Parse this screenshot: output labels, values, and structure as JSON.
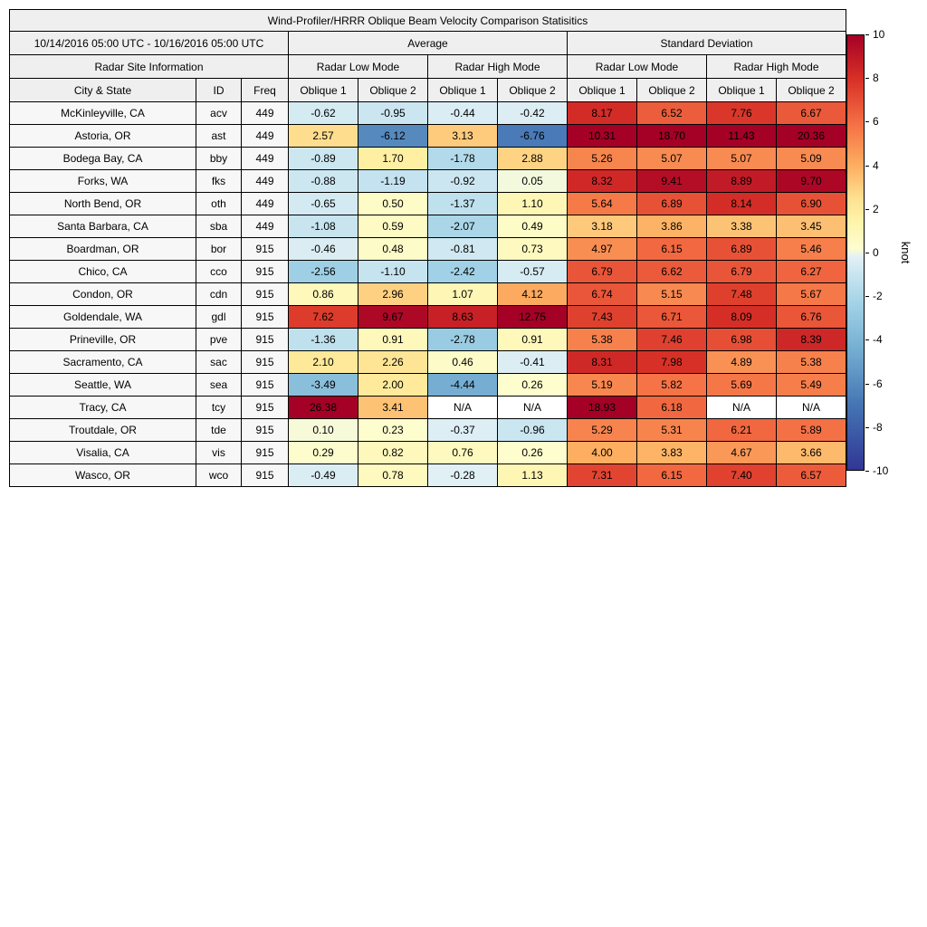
{
  "header": {
    "date_range": "10/14/2016 05:00 UTC - 10/16/2016 05:00 UTC",
    "average": "Average",
    "standard_deviation": "Standard Deviation",
    "radar_site_information": "Radar Site Information",
    "radar_low_mode": "Radar Low Mode",
    "radar_high_mode": "Radar High Mode",
    "city_state": "City & State",
    "id": "ID",
    "freq": "Freq",
    "oblique1": "Oblique 1",
    "oblique2": "Oblique 2"
  },
  "colorbar": {
    "unit_label": "knot",
    "min": -10,
    "max": 10,
    "ticks": [
      10,
      8,
      6,
      4,
      2,
      0,
      -2,
      -4,
      -6,
      -8,
      -10
    ],
    "anchors": [
      {
        "value": -10,
        "color": "#313695"
      },
      {
        "value": -7,
        "color": "#4575b4"
      },
      {
        "value": -4.5,
        "color": "#74add1"
      },
      {
        "value": -2.5,
        "color": "#9fd0e5"
      },
      {
        "value": -1,
        "color": "#c9e5f0"
      },
      {
        "value": -0.2,
        "color": "#e3f1f5"
      },
      {
        "value": 0.2,
        "color": "#fdfdcf"
      },
      {
        "value": 1.5,
        "color": "#fff3a8"
      },
      {
        "value": 2.5,
        "color": "#fee090"
      },
      {
        "value": 4,
        "color": "#fdae61"
      },
      {
        "value": 6,
        "color": "#f46d43"
      },
      {
        "value": 8,
        "color": "#d73027"
      },
      {
        "value": 10,
        "color": "#a50026"
      }
    ]
  },
  "chart_data": {
    "type": "heatmap",
    "title": "Wind-Profiler/HRRR Oblique Beam Velocity Comparison Statisitics",
    "date_range": "10/14/2016 05:00 UTC - 10/16/2016 05:00 UTC",
    "unit": "knot",
    "color_range": [
      -10,
      10
    ],
    "column_groups": [
      {
        "group": "Average",
        "subgroups": [
          "Radar Low Mode",
          "Radar High Mode"
        ]
      },
      {
        "group": "Standard Deviation",
        "subgroups": [
          "Radar Low Mode",
          "Radar High Mode"
        ]
      }
    ],
    "value_column_labels": [
      "Average / Radar Low Mode / Oblique 1",
      "Average / Radar Low Mode / Oblique 2",
      "Average / Radar High Mode / Oblique 1",
      "Average / Radar High Mode / Oblique 2",
      "Standard Deviation / Radar Low Mode / Oblique 1",
      "Standard Deviation / Radar Low Mode / Oblique 2",
      "Standard Deviation / Radar High Mode / Oblique 1",
      "Standard Deviation / Radar High Mode / Oblique 2"
    ],
    "rows": [
      {
        "city_state": "McKinleyville, CA",
        "id": "acv",
        "freq": "449",
        "values": [
          "-0.62",
          "-0.95",
          "-0.44",
          "-0.42",
          "8.17",
          "6.52",
          "7.76",
          "6.67"
        ]
      },
      {
        "city_state": "Astoria, OR",
        "id": "ast",
        "freq": "449",
        "values": [
          "2.57",
          "-6.12",
          "3.13",
          "-6.76",
          "10.31",
          "18.70",
          "11.43",
          "20.36"
        ]
      },
      {
        "city_state": "Bodega Bay, CA",
        "id": "bby",
        "freq": "449",
        "values": [
          "-0.89",
          "1.70",
          "-1.78",
          "2.88",
          "5.26",
          "5.07",
          "5.07",
          "5.09"
        ]
      },
      {
        "city_state": "Forks, WA",
        "id": "fks",
        "freq": "449",
        "values": [
          "-0.88",
          "-1.19",
          "-0.92",
          "0.05",
          "8.32",
          "9.41",
          "8.89",
          "9.70"
        ]
      },
      {
        "city_state": "North Bend, OR",
        "id": "oth",
        "freq": "449",
        "values": [
          "-0.65",
          "0.50",
          "-1.37",
          "1.10",
          "5.64",
          "6.89",
          "8.14",
          "6.90"
        ]
      },
      {
        "city_state": "Santa Barbara, CA",
        "id": "sba",
        "freq": "449",
        "values": [
          "-1.08",
          "0.59",
          "-2.07",
          "0.49",
          "3.18",
          "3.86",
          "3.38",
          "3.45"
        ]
      },
      {
        "city_state": "Boardman, OR",
        "id": "bor",
        "freq": "915",
        "values": [
          "-0.46",
          "0.48",
          "-0.81",
          "0.73",
          "4.97",
          "6.15",
          "6.89",
          "5.46"
        ]
      },
      {
        "city_state": "Chico, CA",
        "id": "cco",
        "freq": "915",
        "values": [
          "-2.56",
          "-1.10",
          "-2.42",
          "-0.57",
          "6.79",
          "6.62",
          "6.79",
          "6.27"
        ]
      },
      {
        "city_state": "Condon, OR",
        "id": "cdn",
        "freq": "915",
        "values": [
          "0.86",
          "2.96",
          "1.07",
          "4.12",
          "6.74",
          "5.15",
          "7.48",
          "5.67"
        ]
      },
      {
        "city_state": "Goldendale, WA",
        "id": "gdl",
        "freq": "915",
        "values": [
          "7.62",
          "9.67",
          "8.63",
          "12.75",
          "7.43",
          "6.71",
          "8.09",
          "6.76"
        ]
      },
      {
        "city_state": "Prineville, OR",
        "id": "pve",
        "freq": "915",
        "values": [
          "-1.36",
          "0.91",
          "-2.78",
          "0.91",
          "5.38",
          "7.46",
          "6.98",
          "8.39"
        ]
      },
      {
        "city_state": "Sacramento, CA",
        "id": "sac",
        "freq": "915",
        "values": [
          "2.10",
          "2.26",
          "0.46",
          "-0.41",
          "8.31",
          "7.98",
          "4.89",
          "5.38"
        ]
      },
      {
        "city_state": "Seattle, WA",
        "id": "sea",
        "freq": "915",
        "values": [
          "-3.49",
          "2.00",
          "-4.44",
          "0.26",
          "5.19",
          "5.82",
          "5.69",
          "5.49"
        ]
      },
      {
        "city_state": "Tracy, CA",
        "id": "tcy",
        "freq": "915",
        "values": [
          "26.38",
          "3.41",
          "N/A",
          "N/A",
          "18.93",
          "6.18",
          "N/A",
          "N/A"
        ]
      },
      {
        "city_state": "Troutdale, OR",
        "id": "tde",
        "freq": "915",
        "values": [
          "0.10",
          "0.23",
          "-0.37",
          "-0.96",
          "5.29",
          "5.31",
          "6.21",
          "5.89"
        ]
      },
      {
        "city_state": "Visalia, CA",
        "id": "vis",
        "freq": "915",
        "values": [
          "0.29",
          "0.82",
          "0.76",
          "0.26",
          "4.00",
          "3.83",
          "4.67",
          "3.66"
        ]
      },
      {
        "city_state": "Wasco, OR",
        "id": "wco",
        "freq": "915",
        "values": [
          "-0.49",
          "0.78",
          "-0.28",
          "1.13",
          "7.31",
          "6.15",
          "7.40",
          "6.57"
        ]
      }
    ]
  }
}
